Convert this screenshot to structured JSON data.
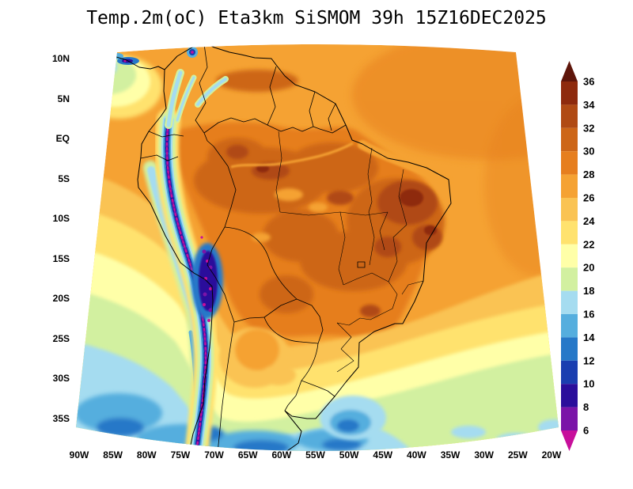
{
  "title": "Temp.2m(oC) Eta3km SiSMOM 39h 15Z16DEC2025",
  "axes": {
    "lat_labels": [
      "10N",
      "5N",
      "EQ",
      "5S",
      "10S",
      "15S",
      "20S",
      "25S",
      "30S",
      "35S"
    ],
    "lon_labels": [
      "90W",
      "85W",
      "80W",
      "75W",
      "70W",
      "65W",
      "60W",
      "55W",
      "50W",
      "45W",
      "40W",
      "35W",
      "30W",
      "25W",
      "20W"
    ]
  },
  "colorbar": {
    "levels": [
      "36",
      "34",
      "32",
      "30",
      "28",
      "26",
      "24",
      "22",
      "20",
      "18",
      "16",
      "14",
      "12",
      "10",
      "8",
      "6"
    ],
    "bands": [
      "gt36",
      "34-36",
      "32-34",
      "30-32",
      "28-30",
      "26-28",
      "24-26",
      "22-24",
      "20-22",
      "18-20",
      "16-18",
      "14-16",
      "12-14",
      "10-12",
      "8-10",
      "6-8",
      "lt6"
    ],
    "colors": [
      "#5e150a",
      "#8e2a0d",
      "#b04a14",
      "#cd6618",
      "#e67e1e",
      "#f5a233",
      "#fac353",
      "#ffe26e",
      "#ffffa8",
      "#d2f0a0",
      "#a5dcf0",
      "#55aede",
      "#2678c8",
      "#1a3eb0",
      "#2a0e9b",
      "#7a14a8",
      "#c70f9b"
    ]
  }
}
